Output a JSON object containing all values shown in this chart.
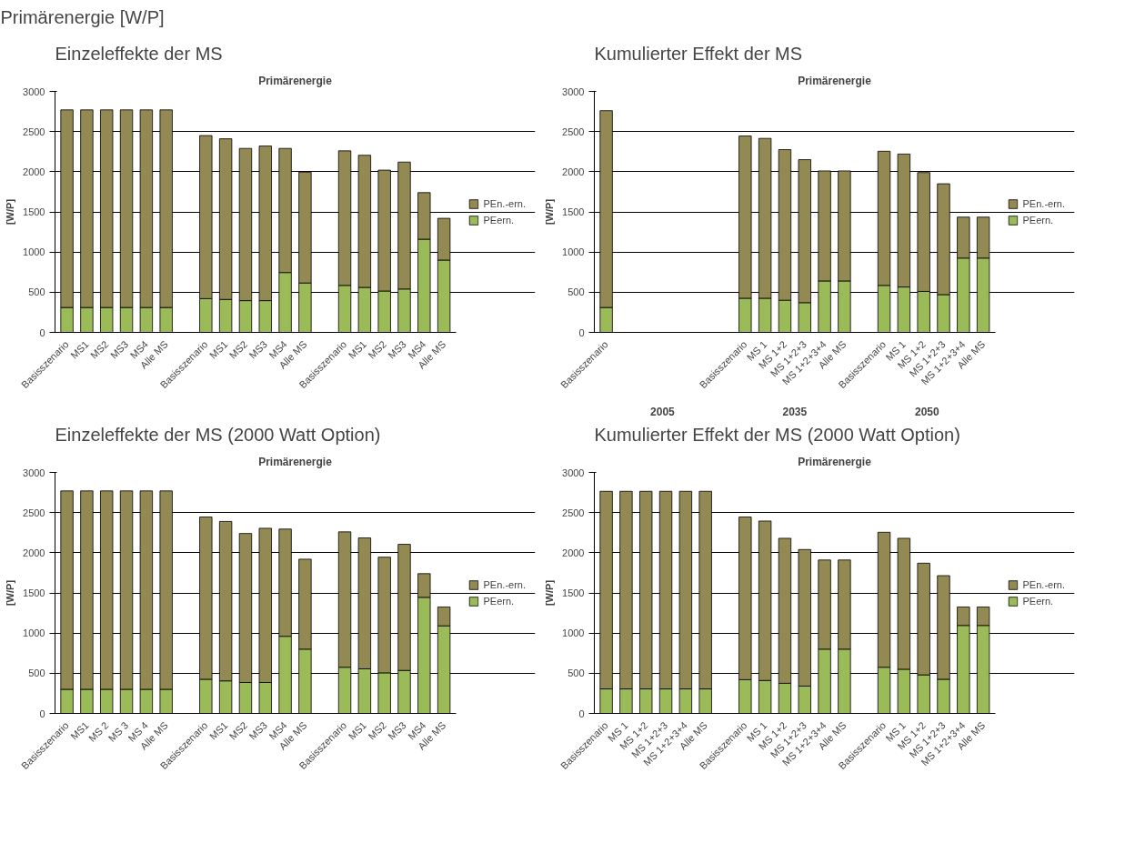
{
  "chart_data": [
    {
      "type": "other",
      "title": "Primärenergie [W/P]"
    },
    {
      "type": "bar",
      "title": "Einzeleffekte der MS",
      "subtitle": "Primärenergie",
      "ylabel": "[W/P]",
      "stacked": true,
      "legend": "right",
      "grid": "y",
      "ylim": [
        0,
        3000
      ],
      "yticks": [
        0,
        500,
        1000,
        1500,
        2000,
        2500,
        3000
      ],
      "categories": [
        "Basisszenario",
        "MS1",
        "MS2",
        "MS3",
        "MS4",
        "Alle MS",
        null,
        "Basisszenario",
        "MS1",
        "MS2",
        "MS3",
        "MS4",
        "Alle MS",
        null,
        "Basisszenario",
        "MS1",
        "MS2",
        "MS3",
        "MS4",
        "Alle MS"
      ],
      "series": [
        {
          "name": "PEern.",
          "color": "#9bbb59",
          "values": [
            310,
            310,
            310,
            310,
            310,
            310,
            null,
            420,
            410,
            395,
            395,
            745,
            615,
            null,
            585,
            560,
            515,
            540,
            1160,
            900
          ]
        },
        {
          "name": "PEn.-ern.",
          "color": "#938953",
          "values": [
            2460,
            2460,
            2460,
            2460,
            2460,
            2460,
            null,
            2030,
            2000,
            1895,
            1925,
            1545,
            1380,
            null,
            1675,
            1645,
            1505,
            1580,
            580,
            520
          ]
        }
      ]
    },
    {
      "type": "bar",
      "title": "Kumulierter Effekt der MS",
      "subtitle": "Primärenergie",
      "ylabel": "[W/P]",
      "stacked": true,
      "legend": "right",
      "grid": "y",
      "ylim": [
        0,
        3000
      ],
      "yticks": [
        0,
        500,
        1000,
        1500,
        2000,
        2500,
        3000
      ],
      "categories": [
        "Basisszenario",
        null,
        null,
        null,
        null,
        null,
        null,
        "Basisszenario",
        "MS 1",
        "MS 1+2",
        "MS 1+2+3",
        "MS 1+2+3+4",
        "Alle MS",
        null,
        "Basisszenario",
        "MS 1",
        "MS 1+2",
        "MS 1+2+3",
        "MS 1+2+3+4",
        "Alle MS"
      ],
      "annotations": [
        "2005",
        "2035",
        "2050"
      ],
      "series": [
        {
          "name": "PEern.",
          "color": "#9bbb59",
          "values": [
            310,
            null,
            null,
            null,
            null,
            null,
            null,
            425,
            425,
            400,
            370,
            640,
            640,
            null,
            585,
            565,
            510,
            470,
            925,
            925
          ]
        },
        {
          "name": "PEn.-ern.",
          "color": "#938953",
          "values": [
            2450,
            null,
            null,
            null,
            null,
            null,
            null,
            2020,
            1990,
            1875,
            1780,
            1370,
            1370,
            null,
            1670,
            1655,
            1480,
            1380,
            510,
            510
          ]
        }
      ]
    },
    {
      "type": "bar",
      "title": "Einzeleffekte der MS (2000 Watt Option)",
      "subtitle": "Primärenergie",
      "ylabel": "[W/P]",
      "stacked": true,
      "legend": "right",
      "grid": "y",
      "ylim": [
        0,
        3000
      ],
      "yticks": [
        0,
        500,
        1000,
        1500,
        2000,
        2500,
        3000
      ],
      "categories": [
        "Basisszenario",
        "MS1",
        "MS 2",
        "MS 3",
        "MS 4",
        "Alle MS",
        null,
        "Basisszenario",
        "MS1",
        "MS2",
        "MS3",
        "MS4",
        "Alle MS",
        null,
        "Basisszenario",
        "MS1",
        "MS2",
        "MS3",
        "MS4",
        "Alle MS"
      ],
      "series": [
        {
          "name": "PEern.",
          "color": "#9bbb59",
          "values": [
            300,
            300,
            300,
            300,
            300,
            300,
            null,
            425,
            405,
            385,
            385,
            960,
            800,
            null,
            575,
            555,
            505,
            535,
            1445,
            1090
          ]
        },
        {
          "name": "PEn.-ern.",
          "color": "#938953",
          "values": [
            2470,
            2470,
            2470,
            2470,
            2470,
            2470,
            null,
            2020,
            1985,
            1855,
            1920,
            1335,
            1120,
            null,
            1685,
            1630,
            1440,
            1570,
            295,
            235
          ]
        }
      ]
    },
    {
      "type": "bar",
      "title": "Kumulierter Effekt der MS (2000 Watt Option)",
      "subtitle": "Primärenergie",
      "ylabel": "[W/P]",
      "stacked": true,
      "legend": "right",
      "grid": "y",
      "ylim": [
        0,
        3000
      ],
      "yticks": [
        0,
        500,
        1000,
        1500,
        2000,
        2500,
        3000
      ],
      "categories": [
        "Basisszenario",
        "MS 1",
        "MS 1+2",
        "MS 1+2+3",
        "MS 1+2+3+4",
        "Alle MS",
        null,
        "Basisszenario",
        "MS 1",
        "MS 1+2",
        "MS 1+2+3",
        "MS 1+2+3+4",
        "Alle MS",
        null,
        "Basisszenario",
        "MS 1",
        "MS 1+2",
        "MS 1+2+3",
        "MS 1+2+3+4",
        "Alle MS"
      ],
      "series": [
        {
          "name": "PEern.",
          "color": "#9bbb59",
          "values": [
            305,
            305,
            305,
            305,
            305,
            305,
            null,
            420,
            410,
            375,
            340,
            800,
            800,
            null,
            575,
            550,
            480,
            425,
            1095,
            1095
          ]
        },
        {
          "name": "PEn.-ern.",
          "color": "#938953",
          "values": [
            2460,
            2460,
            2460,
            2460,
            2460,
            2460,
            null,
            2025,
            1985,
            1805,
            1700,
            1110,
            1110,
            null,
            1680,
            1630,
            1390,
            1290,
            230,
            230
          ]
        }
      ]
    }
  ]
}
